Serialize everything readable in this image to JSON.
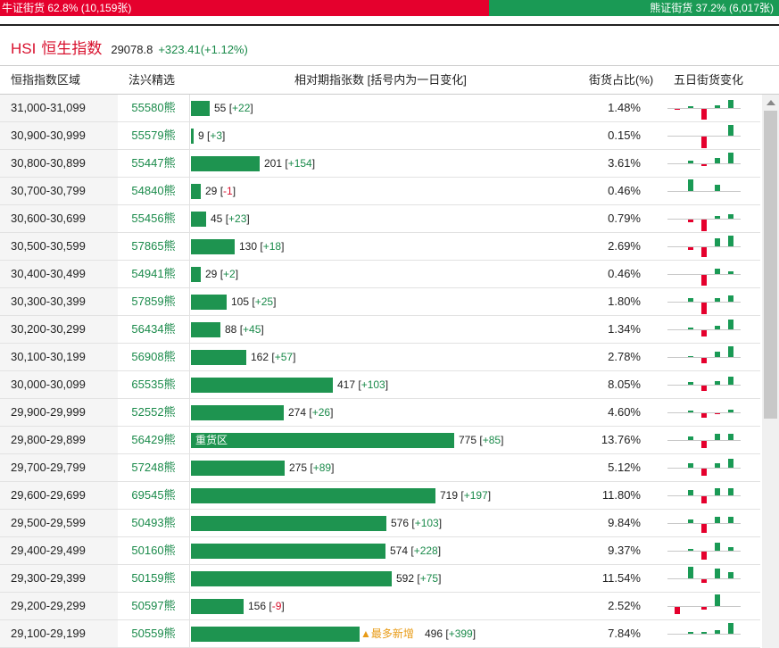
{
  "ratio_bar": {
    "bull_label": "牛证街货 62.8% (10,159张)",
    "bear_label": "熊证街货 37.2% (6,017张)",
    "bull_fraction": 0.628
  },
  "header": {
    "code": "HSI",
    "name": "恒生指数",
    "price": "29078.8",
    "change": "+323.41(+1.12%)"
  },
  "columns": {
    "range": "恒指指数区域",
    "pick": "法兴精选",
    "relative": "相对期指张数 [括号内为一日变化]",
    "share": "街货占比(%)",
    "five_day": "五日街货变化"
  },
  "colors": {
    "bull": "#e5002d",
    "bear": "#1a9a55",
    "bar": "#1e9450",
    "tag": "#e89b16"
  },
  "rows": [
    {
      "range": "31,000-31,099",
      "pick": "55580熊",
      "count": 55,
      "change": "+22",
      "share": "1.48%",
      "five": [
        -1,
        2,
        -12,
        3,
        9
      ]
    },
    {
      "range": "30,900-30,999",
      "pick": "55579熊",
      "count": 9,
      "change": "+3",
      "share": "0.15%",
      "five": [
        0,
        0,
        -13,
        0,
        12
      ]
    },
    {
      "range": "30,800-30,899",
      "pick": "55447熊",
      "count": 201,
      "change": "+154",
      "share": "3.61%",
      "five": [
        0,
        3,
        -2,
        6,
        12
      ]
    },
    {
      "range": "30,700-30,799",
      "pick": "54840熊",
      "count": 29,
      "change": "-1",
      "share": "0.46%",
      "five": [
        0,
        13,
        0,
        7,
        0
      ]
    },
    {
      "range": "30,600-30,699",
      "pick": "55456熊",
      "count": 45,
      "change": "+23",
      "share": "0.79%",
      "five": [
        0,
        -3,
        -13,
        3,
        5
      ]
    },
    {
      "range": "30,500-30,599",
      "pick": "57865熊",
      "count": 130,
      "change": "+18",
      "share": "2.69%",
      "five": [
        0,
        -3,
        -11,
        9,
        12
      ]
    },
    {
      "range": "30,400-30,499",
      "pick": "54941熊",
      "count": 29,
      "change": "+2",
      "share": "0.46%",
      "five": [
        0,
        0,
        -12,
        6,
        3
      ]
    },
    {
      "range": "30,300-30,399",
      "pick": "57859熊",
      "count": 105,
      "change": "+25",
      "share": "1.80%",
      "five": [
        0,
        4,
        -13,
        4,
        7
      ]
    },
    {
      "range": "30,200-30,299",
      "pick": "56434熊",
      "count": 88,
      "change": "+45",
      "share": "1.34%",
      "five": [
        0,
        2,
        -7,
        4,
        11
      ]
    },
    {
      "range": "30,100-30,199",
      "pick": "56908熊",
      "count": 162,
      "change": "+57",
      "share": "2.78%",
      "five": [
        0,
        1,
        -6,
        6,
        12
      ]
    },
    {
      "range": "30,000-30,099",
      "pick": "65535熊",
      "count": 417,
      "change": "+103",
      "share": "8.05%",
      "five": [
        0,
        3,
        -6,
        4,
        9
      ]
    },
    {
      "range": "29,900-29,999",
      "pick": "52552熊",
      "count": 274,
      "change": "+26",
      "share": "4.60%",
      "five": [
        0,
        2,
        -5,
        -1,
        3
      ]
    },
    {
      "range": "29,800-29,899",
      "pick": "56429熊",
      "count": 775,
      "change": "+85",
      "share": "13.76%",
      "zone_label": "重货区",
      "five": [
        0,
        4,
        -8,
        7,
        7
      ]
    },
    {
      "range": "29,700-29,799",
      "pick": "57248熊",
      "count": 275,
      "change": "+89",
      "share": "5.12%",
      "five": [
        0,
        5,
        -8,
        5,
        10
      ]
    },
    {
      "range": "29,600-29,699",
      "pick": "69545熊",
      "count": 719,
      "change": "+197",
      "share": "11.80%",
      "five": [
        0,
        6,
        -8,
        8,
        8
      ]
    },
    {
      "range": "29,500-29,599",
      "pick": "50493熊",
      "count": 576,
      "change": "+103",
      "share": "9.84%",
      "five": [
        0,
        4,
        -10,
        7,
        7
      ]
    },
    {
      "range": "29,400-29,499",
      "pick": "50160熊",
      "count": 574,
      "change": "+228",
      "share": "9.37%",
      "five": [
        0,
        2,
        -9,
        9,
        4
      ]
    },
    {
      "range": "29,300-29,399",
      "pick": "50159熊",
      "count": 592,
      "change": "+75",
      "share": "11.54%",
      "five": [
        0,
        13,
        -4,
        11,
        7
      ]
    },
    {
      "range": "29,200-29,299",
      "pick": "50597熊",
      "count": 156,
      "change": "-9",
      "share": "2.52%",
      "five": [
        -8,
        0,
        -3,
        13,
        0
      ]
    },
    {
      "range": "29,100-29,199",
      "pick": "50559熊",
      "count": 496,
      "change": "+399",
      "share": "7.84%",
      "tag": "▲最多新增",
      "five": [
        0,
        2,
        2,
        4,
        12
      ]
    }
  ]
}
